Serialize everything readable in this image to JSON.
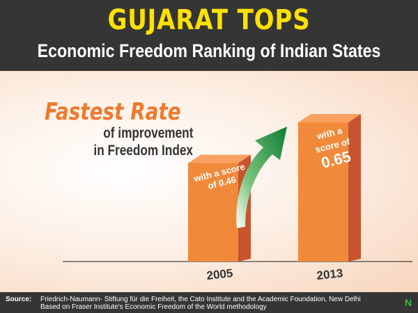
{
  "header": {
    "title": "GUJARAT TOPS",
    "subtitle": "Economic Freedom Ranking of Indian States"
  },
  "headline": {
    "main": "Fastest Rate",
    "line1": "of improvement",
    "line2": "in Freedom Index"
  },
  "chart_data": {
    "type": "bar",
    "categories": [
      "2005",
      "2013"
    ],
    "values": [
      0.46,
      0.65
    ],
    "title": "Fastest Rate of improvement in Freedom Index",
    "xlabel": "",
    "ylabel": "",
    "grid": false,
    "data_labels": [
      [
        "with a score",
        "of 0.46"
      ],
      [
        "with a",
        "score of",
        "0.65"
      ]
    ]
  },
  "footer": {
    "source_label": "Source:",
    "source_line1": "Friedrich-Naumann- Stiftung für die Freiheit, the Cato Institute and the Academic Foundation, New Delhi",
    "source_line2": "Based on Fraser Institute's Economic Freedom of the World methodology",
    "logo": "N"
  },
  "colors": {
    "header_bg": "#353535",
    "title": "#ffe100",
    "accent": "#ed7a2f",
    "bar_front": "#f08a3a",
    "bar_side": "#c8542f",
    "bar_top": "#f9a160",
    "arrow": "#1a8a3c"
  }
}
